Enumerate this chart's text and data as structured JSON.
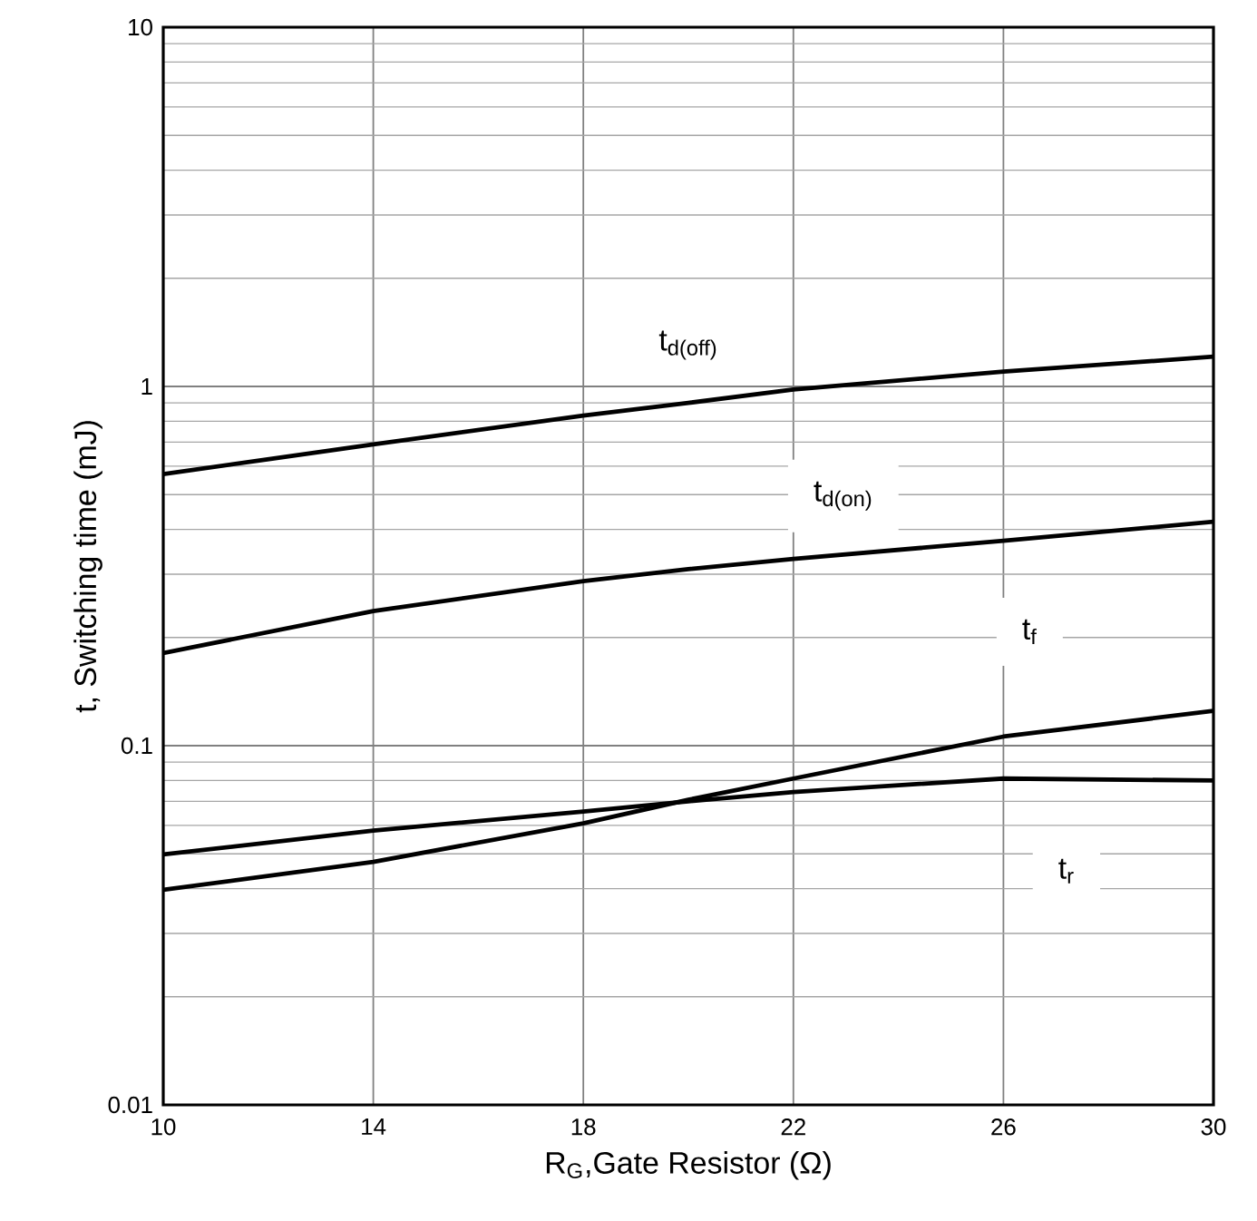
{
  "chart_data": {
    "type": "line",
    "xlabel": "R$_{G}$,Gate Resistor (Ω)",
    "ylabel": "t, Switching time (mJ)",
    "x": [
      10,
      14,
      18,
      20,
      22,
      26,
      30
    ],
    "series": [
      {
        "name": "t$_{d(off)}$",
        "color": "#000000",
        "values": [
          0.57,
          0.69,
          0.83,
          0.9,
          0.98,
          1.1,
          1.21
        ]
      },
      {
        "name": "t$_{d(on)}$",
        "color": "#000000",
        "values": [
          0.181,
          0.237,
          0.287,
          0.31,
          0.331,
          0.372,
          0.42
        ]
      },
      {
        "name": "t$_{f}$",
        "color": "#000000",
        "values": [
          0.0397,
          0.0475,
          0.0608,
          0.0707,
          0.081,
          0.106,
          0.125
        ]
      },
      {
        "name": "t$_{r}$",
        "color": "#000000",
        "values": [
          0.0498,
          0.058,
          0.0656,
          0.07,
          0.0743,
          0.081,
          0.08
        ]
      }
    ],
    "xlim": [
      10,
      30
    ],
    "ylim": [
      0.01,
      10
    ],
    "xticks": [
      10,
      14,
      18,
      22,
      26,
      30
    ],
    "yticks": [
      0.01,
      0.1,
      1,
      10
    ],
    "log": "y",
    "grid": true,
    "marker": "none",
    "line_style": "solid"
  }
}
